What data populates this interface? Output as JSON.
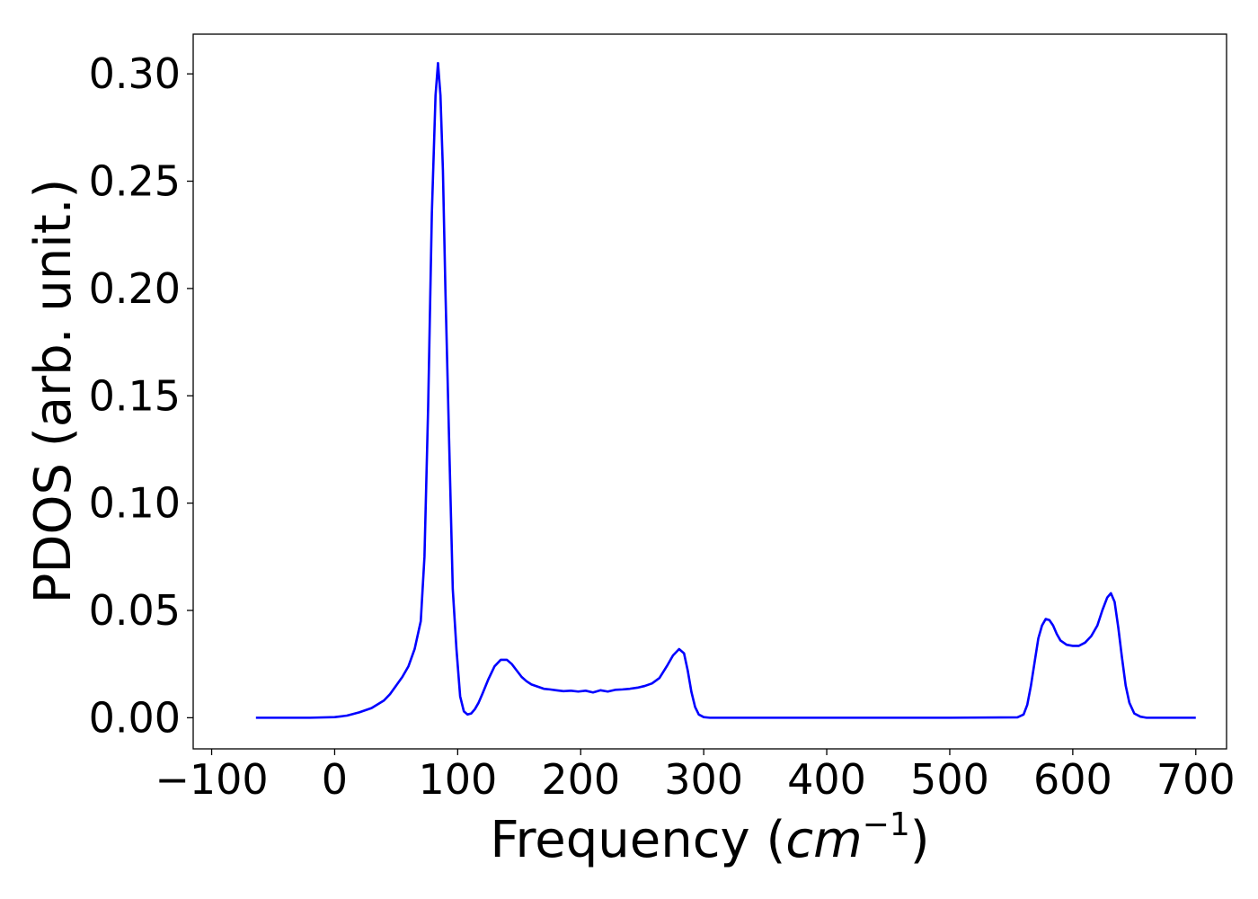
{
  "chart_data": {
    "type": "line",
    "title": "",
    "xlabel": "Frequency (",
    "xlabel_unit": "cm",
    "xlabel_exp": "−1",
    "xlabel_close": ")",
    "ylabel": "PDOS (arb. unit.)",
    "xlim": [
      -115,
      725
    ],
    "ylim": [
      -0.0145,
      0.3185
    ],
    "xticks": [
      -100,
      0,
      100,
      200,
      300,
      400,
      500,
      600,
      700
    ],
    "xtick_labels": [
      "−100",
      "0",
      "100",
      "200",
      "300",
      "400",
      "500",
      "600",
      "700"
    ],
    "yticks": [
      0.0,
      0.05,
      0.1,
      0.15,
      0.2,
      0.25,
      0.3
    ],
    "ytick_labels": [
      "0.00",
      "0.05",
      "0.10",
      "0.15",
      "0.20",
      "0.25",
      "0.30"
    ],
    "grid": false,
    "legend": "none",
    "series": [
      {
        "color": "#0000ff",
        "x": [
          -64,
          -40,
          -20,
          0,
          10,
          20,
          30,
          40,
          45,
          50,
          55,
          60,
          65,
          70,
          73,
          76,
          79,
          82,
          84,
          86,
          88,
          90,
          93,
          96,
          99,
          102,
          105,
          108,
          111,
          114,
          117,
          120,
          125,
          130,
          135,
          140,
          144,
          148,
          152,
          156,
          160,
          165,
          170,
          175,
          180,
          186,
          192,
          198,
          204,
          210,
          216,
          222,
          228,
          234,
          240,
          246,
          252,
          258,
          264,
          270,
          275,
          280,
          284,
          287,
          290,
          293,
          296,
          300,
          305,
          310,
          320,
          400,
          500,
          555,
          560,
          563,
          566,
          569,
          572,
          575,
          578,
          581,
          584,
          587,
          590,
          595,
          600,
          605,
          610,
          615,
          620,
          624,
          628,
          631,
          634,
          637,
          640,
          643,
          646,
          650,
          655,
          660,
          680,
          700
        ],
        "y": [
          0.0,
          0.0,
          0.0,
          0.0003,
          0.001,
          0.0025,
          0.0045,
          0.008,
          0.011,
          0.015,
          0.019,
          0.024,
          0.032,
          0.045,
          0.075,
          0.145,
          0.235,
          0.29,
          0.305,
          0.29,
          0.255,
          0.2,
          0.13,
          0.06,
          0.032,
          0.01,
          0.003,
          0.0015,
          0.002,
          0.004,
          0.007,
          0.011,
          0.018,
          0.024,
          0.027,
          0.027,
          0.025,
          0.022,
          0.019,
          0.017,
          0.0155,
          0.0145,
          0.0135,
          0.0132,
          0.0128,
          0.0124,
          0.0126,
          0.0122,
          0.0126,
          0.0118,
          0.0128,
          0.0122,
          0.013,
          0.0132,
          0.0135,
          0.014,
          0.0148,
          0.016,
          0.0185,
          0.024,
          0.029,
          0.032,
          0.03,
          0.022,
          0.012,
          0.005,
          0.0015,
          0.0003,
          0.0,
          0.0,
          0.0,
          0.0,
          0.0,
          0.0002,
          0.0015,
          0.006,
          0.015,
          0.026,
          0.037,
          0.043,
          0.046,
          0.0455,
          0.043,
          0.039,
          0.036,
          0.034,
          0.0335,
          0.0335,
          0.035,
          0.038,
          0.043,
          0.05,
          0.056,
          0.058,
          0.054,
          0.042,
          0.028,
          0.015,
          0.007,
          0.002,
          0.0005,
          0.0,
          0.0,
          0.0
        ]
      }
    ]
  }
}
